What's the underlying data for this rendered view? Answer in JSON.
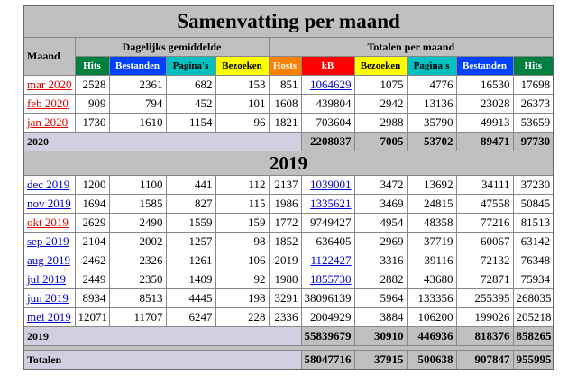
{
  "title": "Samenvatting per maand",
  "header": {
    "month": "Maand",
    "daily_group": "Dagelijks gemiddelde",
    "totals_group": "Totalen per maand",
    "daily_columns": [
      {
        "label": "Hits",
        "color": "#008040",
        "text_color": "#ffffff"
      },
      {
        "label": "Bestanden",
        "color": "#0040ff",
        "text_color": "#ffffff"
      },
      {
        "label": "Pagina's",
        "color": "#00c0c0",
        "text_color": "#000000"
      },
      {
        "label": "Bezoeken",
        "color": "#ffff00",
        "text_color": "#000000"
      }
    ],
    "total_columns": [
      {
        "label": "Hosts",
        "color": "#ff8000",
        "text_color": "#ffffff"
      },
      {
        "label": "kB",
        "color": "#ff0000",
        "text_color": "#ffffff"
      },
      {
        "label": "Bezoeken",
        "color": "#ffff00",
        "text_color": "#000000"
      },
      {
        "label": "Pagina's",
        "color": "#00c0c0",
        "text_color": "#000000"
      },
      {
        "label": "Bestanden",
        "color": "#0040ff",
        "text_color": "#ffffff"
      },
      {
        "label": "Hits",
        "color": "#008040",
        "text_color": "#ffffff"
      }
    ]
  },
  "groups": [
    {
      "months": [
        {
          "month": "mar 2020",
          "color": "#dd0000",
          "kb_link": true,
          "values": [
            2528,
            2361,
            682,
            153,
            851,
            1064629,
            1075,
            4776,
            16530,
            17698
          ]
        },
        {
          "month": "feb 2020",
          "color": "#dd0000",
          "kb_link": false,
          "values": [
            909,
            794,
            452,
            101,
            1608,
            439804,
            2942,
            13136,
            23028,
            26373
          ]
        },
        {
          "month": "jan 2020",
          "color": "#dd0000",
          "kb_link": false,
          "values": [
            1730,
            1610,
            1154,
            96,
            1821,
            703604,
            2988,
            35790,
            49913,
            53659
          ]
        }
      ],
      "summary": {
        "label": "2020",
        "values": [
          2208037,
          7005,
          53702,
          89471,
          97730
        ]
      }
    },
    {
      "heading": "2019",
      "months": [
        {
          "month": "dec 2019",
          "color": "#0000cc",
          "kb_link": true,
          "values": [
            1200,
            1100,
            441,
            112,
            2137,
            1039001,
            3472,
            13692,
            34111,
            37230
          ]
        },
        {
          "month": "nov 2019",
          "color": "#0000cc",
          "kb_link": true,
          "values": [
            1694,
            1585,
            827,
            115,
            1986,
            1335621,
            3469,
            24815,
            47558,
            50845
          ]
        },
        {
          "month": "okt 2019",
          "color": "#dd0000",
          "kb_link": false,
          "values": [
            2629,
            2490,
            1559,
            159,
            1772,
            9749427,
            4954,
            48358,
            77216,
            81513
          ]
        },
        {
          "month": "sep 2019",
          "color": "#0000cc",
          "kb_link": false,
          "values": [
            2104,
            2002,
            1257,
            98,
            1852,
            636405,
            2969,
            37719,
            60067,
            63142
          ]
        },
        {
          "month": "aug 2019",
          "color": "#0000cc",
          "kb_link": true,
          "values": [
            2462,
            2326,
            1261,
            106,
            2019,
            1122427,
            3316,
            39116,
            72132,
            76348
          ]
        },
        {
          "month": "jul 2019",
          "color": "#0000cc",
          "kb_link": true,
          "values": [
            2449,
            2350,
            1409,
            92,
            1980,
            1855730,
            2882,
            43680,
            72871,
            75934
          ]
        },
        {
          "month": "jun 2019",
          "color": "#0000cc",
          "kb_link": false,
          "values": [
            8934,
            8513,
            4445,
            198,
            3291,
            38096139,
            5964,
            133356,
            255395,
            268035
          ]
        },
        {
          "month": "mei 2019",
          "color": "#0000cc",
          "kb_link": false,
          "values": [
            12071,
            11707,
            6247,
            228,
            2336,
            2004929,
            3884,
            106200,
            199026,
            205218
          ]
        }
      ],
      "summary": {
        "label": "2019",
        "values": [
          55839679,
          30910,
          446936,
          818376,
          858265
        ]
      }
    }
  ],
  "total": {
    "label": "Totalen",
    "values": [
      58047716,
      37915,
      500638,
      907847,
      955995
    ]
  }
}
